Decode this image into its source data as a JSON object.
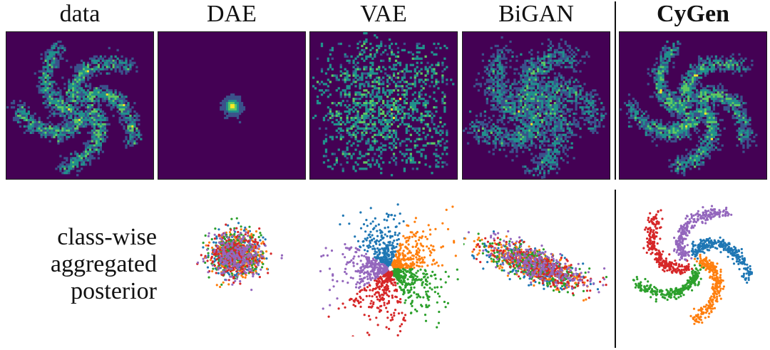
{
  "titles": [
    "data",
    "DAE",
    "VAE",
    "BiGAN",
    "CyGen"
  ],
  "row_label": [
    "class-wise",
    "aggregated",
    "posterior"
  ],
  "colors": {
    "heat_bg": "#440154",
    "heat_low": "#3b528b",
    "heat_mid": "#21918c",
    "heat_high": "#5ec962",
    "heat_top": "#fde725",
    "classes": [
      "#1f77b4",
      "#ff7f0e",
      "#2ca02c",
      "#d62728",
      "#9467bd"
    ]
  },
  "panels": [
    {
      "name": "data",
      "kind": "pinwheel",
      "spread": 0.06
    },
    {
      "name": "DAE",
      "kind": "blob",
      "spread": 0.05
    },
    {
      "name": "VAE",
      "kind": "pinwheel-noisy",
      "spread": 0.16
    },
    {
      "name": "BiGAN",
      "kind": "pinwheel-rotated",
      "spread": 0.1
    },
    {
      "name": "CyGen",
      "kind": "pinwheel",
      "spread": 0.06
    }
  ],
  "posteriors": [
    {
      "name": "DAE",
      "kind": "blob"
    },
    {
      "name": "VAE",
      "kind": "sectors"
    },
    {
      "name": "BiGAN",
      "kind": "ellipse"
    },
    {
      "name": "CyGen",
      "kind": "pinwheel"
    }
  ]
}
